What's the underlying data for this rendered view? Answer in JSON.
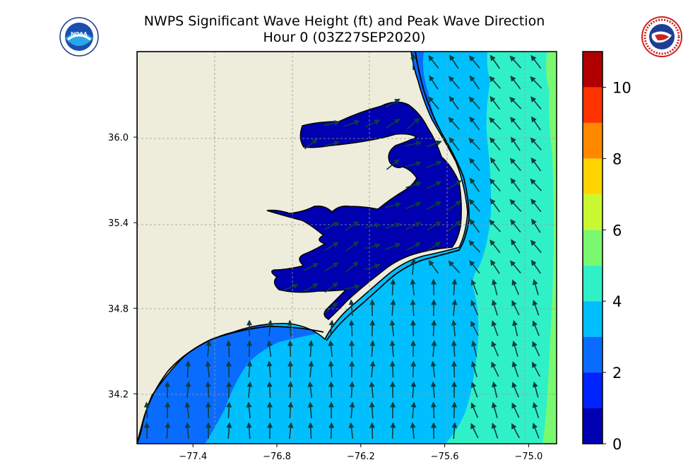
{
  "title": {
    "line1": "NWPS Significant Wave Height (ft) and Peak Wave Direction",
    "line2": "Hour 0 (03Z27SEP2020)"
  },
  "logos": {
    "left": "noaa-logo",
    "right": "nws-logo",
    "left_text": "NOAA",
    "right_text": "NATIONAL WEATHER SERVICE"
  },
  "map": {
    "lon_range": [
      -77.8,
      -74.8
    ],
    "lat_range": [
      33.85,
      36.6
    ],
    "lon_ticks": [
      -77.4,
      -76.8,
      -76.2,
      -75.6,
      -75.0
    ],
    "lat_ticks": [
      34.2,
      34.8,
      35.4,
      36.0
    ],
    "lon_tick_labels": [
      "−77.4",
      "−76.8",
      "−76.2",
      "−75.6",
      "−75.0"
    ],
    "lat_tick_labels": [
      "34.2",
      "34.8",
      "35.4",
      "36.0"
    ],
    "gridlines": true,
    "land_color": "#eeecdb",
    "sound_color": "#0000b0"
  },
  "colorbar": {
    "range": [
      0,
      11
    ],
    "levels": [
      0,
      1,
      2,
      3,
      4,
      5,
      6,
      7,
      8,
      9,
      10,
      11
    ],
    "colors": [
      "#0000b0",
      "#0022ff",
      "#0a6cff",
      "#00bfff",
      "#30f0c8",
      "#7af870",
      "#c8f830",
      "#ffd400",
      "#ff8800",
      "#ff3300",
      "#b00000"
    ],
    "tick_values": [
      0,
      2,
      4,
      6,
      8,
      10
    ],
    "tick_labels": [
      "0",
      "2",
      "4",
      "6",
      "8",
      "10"
    ]
  },
  "wave_zones": [
    {
      "name": "nearshore-band",
      "height_ft": 2.5,
      "color": "#0a6cff"
    },
    {
      "name": "shelf-zone",
      "height_ft": 3.5,
      "color": "#00bfff"
    },
    {
      "name": "offshore-zone",
      "height_ft": 4.5,
      "color": "#30f0c8"
    },
    {
      "name": "far-offshore-strip",
      "height_ft": 5.5,
      "color": "#7af870"
    }
  ],
  "arrow_color": "#0d3d3d"
}
